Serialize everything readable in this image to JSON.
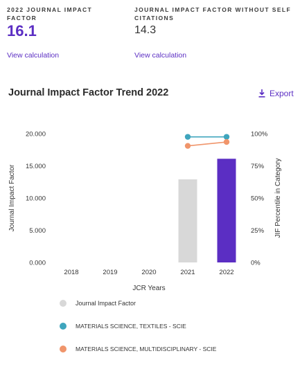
{
  "metrics": {
    "jif": {
      "label": "2022 JOURNAL IMPACT FACTOR",
      "value": "16.1",
      "link": "View calculation"
    },
    "jif_no_self": {
      "label": "JOURNAL IMPACT FACTOR WITHOUT SELF CITATIONS",
      "value": "14.3",
      "link": "View calculation"
    }
  },
  "section": {
    "title": "Journal Impact Factor Trend 2022",
    "export_label": "Export",
    "export_icon": "download-icon"
  },
  "colors": {
    "accent": "#5b2ec3",
    "bar_past": "#d8d8d8",
    "bar_current": "#5b2ec3",
    "teal": "#3fa5bd",
    "orange": "#f0956b"
  },
  "chart_data": {
    "type": "bar",
    "xlabel": "JCR Years",
    "ylabel": "Journal Impact Factor",
    "y2label": "JIF Percentile in Category",
    "categories": [
      "2018",
      "2019",
      "2020",
      "2021",
      "2022"
    ],
    "ylim": [
      0,
      20
    ],
    "yticks": [
      "0.000",
      "5.000",
      "10.000",
      "15.000",
      "20.000"
    ],
    "y2lim": [
      0,
      100
    ],
    "y2ticks": [
      "0%",
      "25%",
      "50%",
      "75%",
      "100%"
    ],
    "grid": false,
    "legend_position": "bottom",
    "series": [
      {
        "name": "Journal Impact Factor",
        "kind": "bar",
        "axis": "left",
        "values": [
          null,
          null,
          null,
          12.9,
          16.1
        ],
        "colors": [
          "#d8d8d8",
          "#d8d8d8",
          "#d8d8d8",
          "#d8d8d8",
          "#5b2ec3"
        ]
      },
      {
        "name": "MATERIALS SCIENCE, TEXTILES - SCIE",
        "kind": "line",
        "axis": "right",
        "color": "#3fa5bd",
        "values": [
          null,
          null,
          null,
          97.5,
          97.5
        ]
      },
      {
        "name": "MATERIALS SCIENCE, MULTIDISCIPLINARY - SCIE",
        "kind": "line",
        "axis": "right",
        "color": "#f0956b",
        "values": [
          null,
          null,
          null,
          90.5,
          93.5
        ]
      }
    ]
  }
}
